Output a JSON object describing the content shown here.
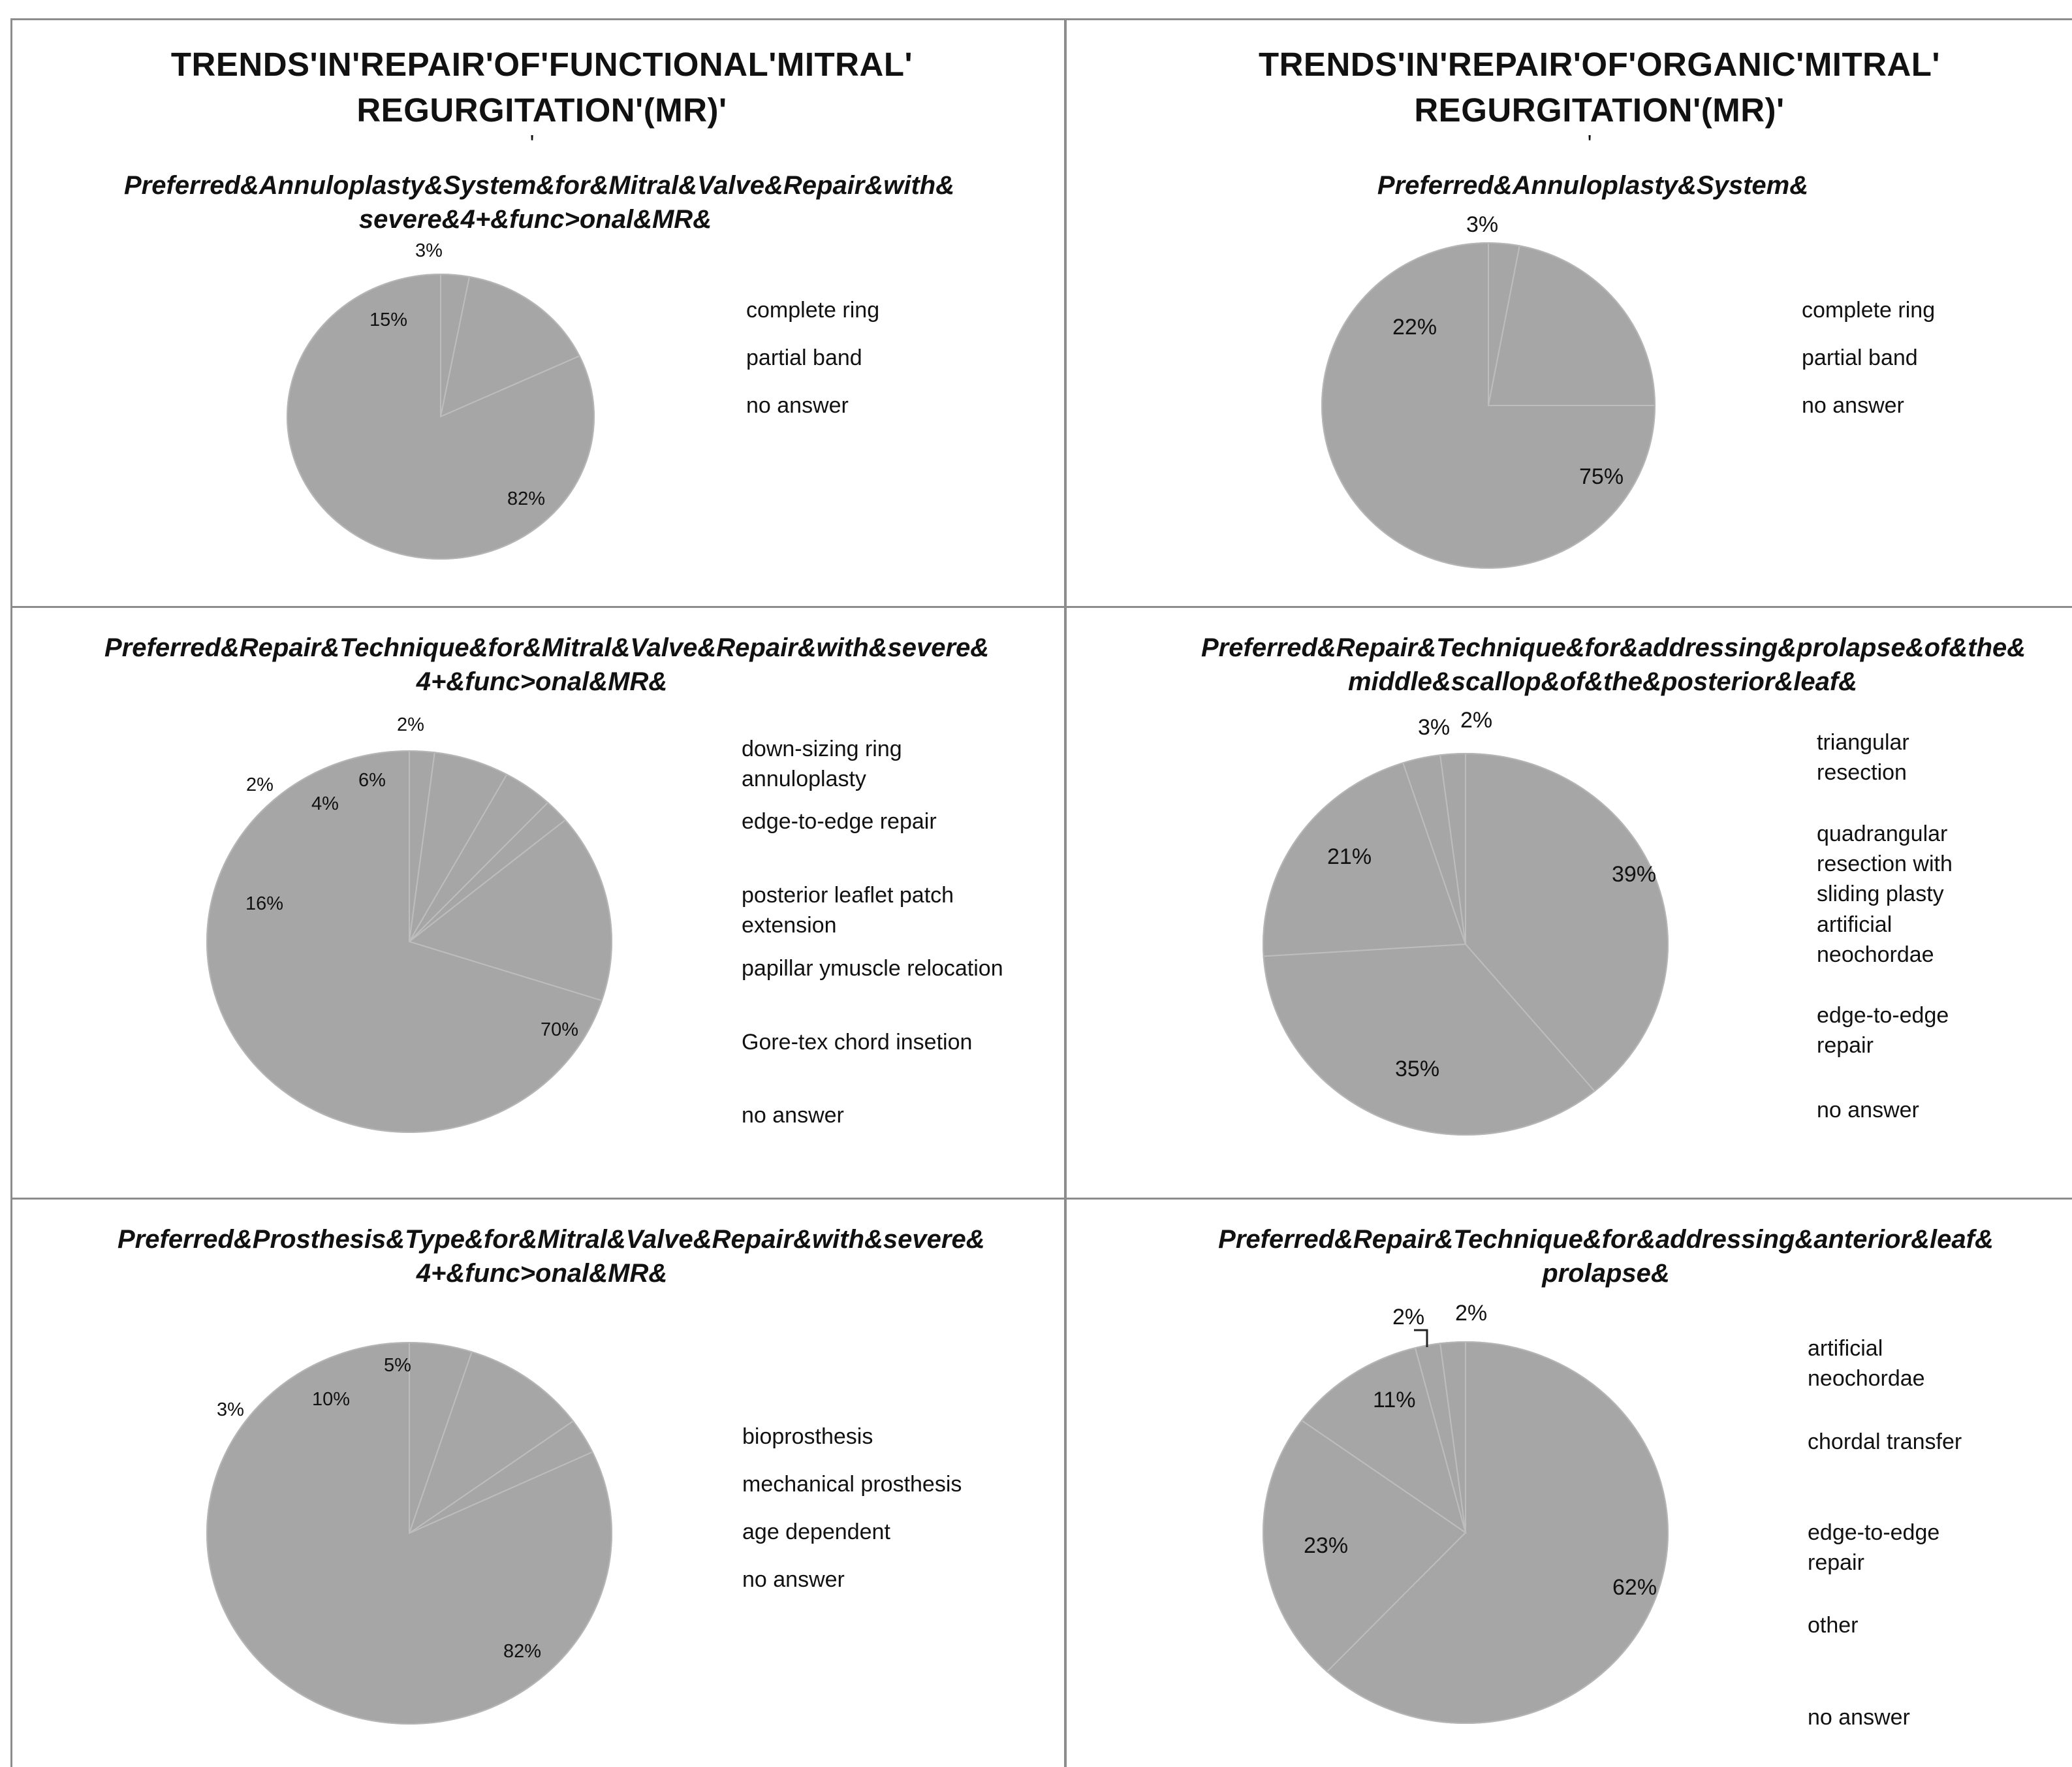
{
  "header": {
    "left_title": "TRENDS'IN'REPAIR'OF'FUNCTIONAL'MITRAL' REGURGITATION'(MR)'",
    "right_title": "TRENDS'IN'REPAIR'OF'ORGANIC'MITRAL' REGURGITATION'(MR)'",
    "left_apostrophe": "'",
    "right_apostrophe": "'"
  },
  "colors": {
    "slice": "#a6a6a6",
    "slice_edge": "#bdbdbd",
    "grid": "#8c8c8c"
  },
  "chart_data": [
    {
      "type": "pie",
      "title": "Preferred&Annuloplasty&System&for&Mitral&Valve&Repair&with& severe&4+&func>onal&MR&",
      "legend": [
        "complete ring",
        "partial band",
        "no answer"
      ],
      "slices": [
        {
          "label": "82%",
          "value": 82
        },
        {
          "label": "15%",
          "value": 15
        },
        {
          "label": "3%",
          "value": 3
        }
      ]
    },
    {
      "type": "pie",
      "title": "Preferred&Annuloplasty&System&",
      "legend": [
        "complete ring",
        "partial band",
        "no answer"
      ],
      "slices": [
        {
          "label": "75%",
          "value": 75
        },
        {
          "label": "22%",
          "value": 22
        },
        {
          "label": "3%",
          "value": 3
        }
      ]
    },
    {
      "type": "pie",
      "title": "Preferred&Repair&Technique&for&Mitral&Valve&Repair&with&severe& 4+&func>onal&MR&",
      "legend": [
        "down-sizing ring annuloplasty",
        "edge-to-edge repair",
        "posterior leaflet patch extension",
        "papillar ymuscle relocation",
        "Gore-tex chord insetion",
        "no answer"
      ],
      "slices": [
        {
          "label": "70%",
          "value": 70
        },
        {
          "label": "16%",
          "value": 16
        },
        {
          "label": "2%",
          "value": 2
        },
        {
          "label": "4%",
          "value": 4
        },
        {
          "label": "6%",
          "value": 6
        },
        {
          "label": "2%",
          "value": 2
        }
      ]
    },
    {
      "type": "pie",
      "title": "Preferred&Repair&Technique&for&addressing&prolapse&of&the& middle&scallop&of&the&posterior&leaf&",
      "legend": [
        "triangular resection",
        "quadrangular resection with sliding plasty",
        "artificial neochordae",
        "edge-to-edge repair",
        "no answer"
      ],
      "slices": [
        {
          "label": "39%",
          "value": 39
        },
        {
          "label": "35%",
          "value": 35
        },
        {
          "label": "21%",
          "value": 21
        },
        {
          "label": "3%",
          "value": 3
        },
        {
          "label": "2%",
          "value": 2
        }
      ]
    },
    {
      "type": "pie",
      "title": "Preferred&Prosthesis&Type&for&Mitral&Valve&Repair&with&severe& 4+&func>onal&MR&",
      "legend": [
        "bioprosthesis",
        "mechanical prosthesis",
        "age dependent",
        "no answer"
      ],
      "slices": [
        {
          "label": "82%",
          "value": 82
        },
        {
          "label": "3%",
          "value": 3
        },
        {
          "label": "10%",
          "value": 10
        },
        {
          "label": "5%",
          "value": 5
        }
      ]
    },
    {
      "type": "pie",
      "title": "Preferred&Repair&Technique&for&addressing&anterior&leaf& prolapse&",
      "legend": [
        "artificial neochordae",
        "chordal transfer",
        "edge-to-edge repair",
        "other",
        "no answer"
      ],
      "slices": [
        {
          "label": "62%",
          "value": 62
        },
        {
          "label": "23%",
          "value": 23
        },
        {
          "label": "11%",
          "value": 11
        },
        {
          "label": "2%",
          "value": 2
        },
        {
          "label": "2%",
          "value": 2
        }
      ]
    }
  ]
}
